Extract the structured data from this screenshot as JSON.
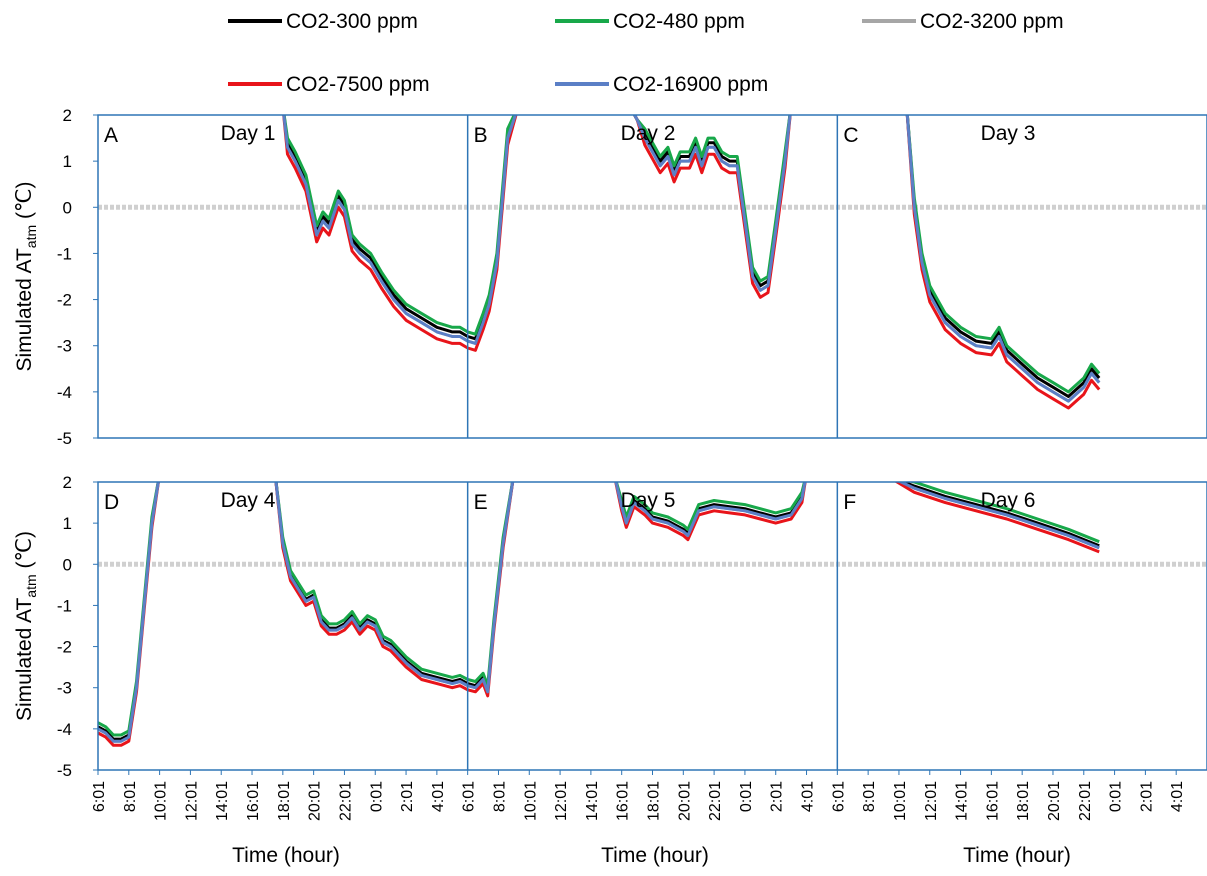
{
  "chart_data": {
    "type": "line",
    "legend": {
      "placement": "top",
      "entries": [
        {
          "name": "CO2-300 ppm",
          "color": "#000000"
        },
        {
          "name": "CO2-480 ppm",
          "color": "#18a84a"
        },
        {
          "name": "CO2-3200 ppm",
          "color": "#a6a6a6"
        },
        {
          "name": "CO2-7500 ppm",
          "color": "#e8141a"
        },
        {
          "name": "CO2-16900 ppm",
          "color": "#5b7fc6"
        }
      ]
    },
    "zero_line_color": "#d0d0d0",
    "axis_color": "#2e75b6",
    "ylabel": "Simulated AT",
    "ylabel_sub": "atm",
    "ylabel_unit": " (℃)",
    "xlabel": "Time (hour)",
    "ylim": [
      -5,
      2
    ],
    "yticks": [
      "2",
      "1",
      "0",
      "-1",
      "-2",
      "-3",
      "-4",
      "-5"
    ],
    "x_ticks": [
      "6:01",
      "8:01",
      "10:01",
      "12:01",
      "14:01",
      "16:01",
      "18:01",
      "20:01",
      "22:01",
      "0:01",
      "2:01",
      "4:01"
    ],
    "x_hours": [
      0,
      2,
      4,
      6,
      8,
      10,
      12,
      14,
      16,
      18,
      20,
      22
    ],
    "panels": [
      {
        "letter": "A",
        "day": "Day 1"
      },
      {
        "letter": "B",
        "day": "Day 2"
      },
      {
        "letter": "C",
        "day": "Day 3"
      },
      {
        "letter": "D",
        "day": "Day 4"
      },
      {
        "letter": "E",
        "day": "Day 5"
      },
      {
        "letter": "F",
        "day": "Day 6"
      }
    ],
    "rows": [
      {
        "blue_curve": [
          [
            12,
            2.2
          ],
          [
            12.3,
            1.3
          ],
          [
            12.8,
            1.0
          ],
          [
            13.5,
            0.5
          ],
          [
            14.2,
            -0.6
          ],
          [
            14.6,
            -0.3
          ],
          [
            15.0,
            -0.45
          ],
          [
            15.6,
            0.15
          ],
          [
            16.0,
            -0.05
          ],
          [
            16.5,
            -0.8
          ],
          [
            17.0,
            -1.0
          ],
          [
            17.7,
            -1.2
          ],
          [
            18.4,
            -1.6
          ],
          [
            19.2,
            -2.0
          ],
          [
            20.0,
            -2.3
          ],
          [
            21.0,
            -2.5
          ],
          [
            22.0,
            -2.7
          ],
          [
            23.0,
            -2.8
          ],
          [
            23.5,
            -2.8
          ],
          [
            24.0,
            -2.9
          ],
          [
            24.5,
            -2.95
          ],
          [
            25.0,
            -2.5
          ],
          [
            25.4,
            -2.1
          ],
          [
            25.9,
            -1.2
          ],
          [
            26.6,
            1.5
          ],
          [
            27.3,
            2.2
          ],
          [
            34.5,
            2.2
          ],
          [
            35.0,
            1.9
          ],
          [
            35.5,
            1.5
          ],
          [
            36.0,
            1.2
          ],
          [
            36.5,
            0.9
          ],
          [
            37.0,
            1.1
          ],
          [
            37.4,
            0.7
          ],
          [
            37.8,
            1.0
          ],
          [
            38.4,
            1.0
          ],
          [
            38.8,
            1.3
          ],
          [
            39.2,
            0.9
          ],
          [
            39.6,
            1.3
          ],
          [
            40.0,
            1.3
          ],
          [
            40.5,
            1.0
          ],
          [
            41.0,
            0.9
          ],
          [
            41.5,
            0.9
          ],
          [
            42.0,
            -0.3
          ],
          [
            42.5,
            -1.5
          ],
          [
            43.0,
            -1.8
          ],
          [
            43.5,
            -1.7
          ],
          [
            44.0,
            -0.5
          ],
          [
            44.6,
            1.0
          ],
          [
            45.0,
            2.2
          ],
          [
            52.5,
            2.2
          ],
          [
            53.0,
            0.0
          ],
          [
            53.5,
            -1.2
          ],
          [
            54.0,
            -1.9
          ],
          [
            54.5,
            -2.2
          ],
          [
            55.0,
            -2.5
          ],
          [
            56.0,
            -2.8
          ],
          [
            57.0,
            -3.0
          ],
          [
            58.0,
            -3.05
          ],
          [
            58.5,
            -2.8
          ],
          [
            59.0,
            -3.2
          ],
          [
            60.0,
            -3.5
          ],
          [
            61.0,
            -3.8
          ],
          [
            62.0,
            -4.0
          ],
          [
            63.0,
            -4.2
          ],
          [
            64.0,
            -3.9
          ],
          [
            64.5,
            -3.6
          ],
          [
            65.0,
            -3.8
          ]
        ],
        "offsets": [
          0.1,
          0.2,
          0.0,
          -0.15,
          0.0
        ]
      },
      {
        "blue_curve": [
          [
            0,
            -4.0
          ],
          [
            0.5,
            -4.1
          ],
          [
            1.0,
            -4.3
          ],
          [
            1.5,
            -4.3
          ],
          [
            2.0,
            -4.2
          ],
          [
            2.5,
            -3.0
          ],
          [
            3.0,
            -1.0
          ],
          [
            3.5,
            1.0
          ],
          [
            4.0,
            2.2
          ],
          [
            11.5,
            2.2
          ],
          [
            12.0,
            0.5
          ],
          [
            12.5,
            -0.3
          ],
          [
            13.0,
            -0.6
          ],
          [
            13.5,
            -0.9
          ],
          [
            14.0,
            -0.8
          ],
          [
            14.5,
            -1.4
          ],
          [
            15.0,
            -1.6
          ],
          [
            15.5,
            -1.6
          ],
          [
            16.0,
            -1.5
          ],
          [
            16.5,
            -1.3
          ],
          [
            17.0,
            -1.6
          ],
          [
            17.5,
            -1.4
          ],
          [
            18.0,
            -1.5
          ],
          [
            18.5,
            -1.9
          ],
          [
            19.0,
            -2.0
          ],
          [
            20.0,
            -2.4
          ],
          [
            21.0,
            -2.7
          ],
          [
            22.0,
            -2.8
          ],
          [
            23.0,
            -2.9
          ],
          [
            23.5,
            -2.85
          ],
          [
            24.0,
            -2.95
          ],
          [
            24.5,
            -3.0
          ],
          [
            25.0,
            -2.8
          ],
          [
            25.3,
            -3.1
          ],
          [
            25.7,
            -1.5
          ],
          [
            26.3,
            0.5
          ],
          [
            27.0,
            2.2
          ],
          [
            33.5,
            2.2
          ],
          [
            34.0,
            1.4
          ],
          [
            34.3,
            1.0
          ],
          [
            34.8,
            1.5
          ],
          [
            35.5,
            1.3
          ],
          [
            36.0,
            1.1
          ],
          [
            37.0,
            1.0
          ],
          [
            37.5,
            0.9
          ],
          [
            38.0,
            0.8
          ],
          [
            38.3,
            0.7
          ],
          [
            39.0,
            1.3
          ],
          [
            40.0,
            1.4
          ],
          [
            41.0,
            1.35
          ],
          [
            42.0,
            1.3
          ],
          [
            43.0,
            1.2
          ],
          [
            43.5,
            1.15
          ],
          [
            44.0,
            1.1
          ],
          [
            45.0,
            1.2
          ],
          [
            45.7,
            1.6
          ],
          [
            46.0,
            2.2
          ],
          [
            51.0,
            2.2
          ],
          [
            53.0,
            1.85
          ],
          [
            55.0,
            1.6
          ],
          [
            57.0,
            1.4
          ],
          [
            59.0,
            1.2
          ],
          [
            61.0,
            0.95
          ],
          [
            63.0,
            0.7
          ],
          [
            65.0,
            0.4
          ]
        ],
        "offsets": [
          0.05,
          0.15,
          0.0,
          -0.1,
          0.0
        ]
      }
    ]
  }
}
